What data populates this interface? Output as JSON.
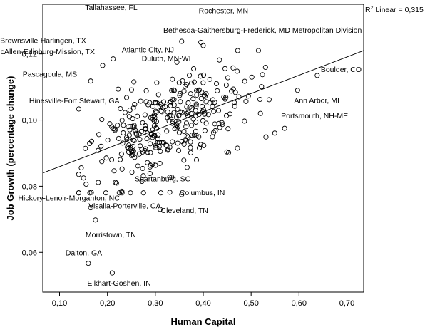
{
  "chart_data": {
    "type": "scatter",
    "xlabel": "Human Capital",
    "ylabel": "Job Growth (percentage change)",
    "xlim": [
      0.065,
      0.735
    ],
    "ylim": [
      0.048,
      0.135
    ],
    "x_ticks": [
      "0,10",
      "0,20",
      "0,30",
      "0,40",
      "0,50",
      "0,60",
      "0,70"
    ],
    "x_tick_values": [
      0.1,
      0.2,
      0.3,
      0.4,
      0.5,
      0.6,
      0.7
    ],
    "y_ticks": [
      "0,06",
      "0,08",
      "0,10",
      "0,12"
    ],
    "y_tick_values": [
      0.06,
      0.08,
      0.1,
      0.12
    ],
    "fit_line": {
      "type": "linear",
      "label_sup": "2",
      "label_prefix": "R",
      "label_suffix": " Linear = 0,315",
      "x0": 0.065,
      "y0": 0.084,
      "x1": 0.735,
      "y1": 0.121
    },
    "labeled_points": [
      {
        "label": "Tallahassee, FL",
        "x": 0.355,
        "y": 0.1238
      },
      {
        "label": "Rochester, MN",
        "x": 0.395,
        "y": 0.1235
      },
      {
        "label": "Bethesda-Gaithersburg-Frederick, MD Metropolitan Division",
        "x": 0.4,
        "y": 0.1225
      },
      {
        "label": "Brownsville-Harlingen, TX",
        "x": 0.212,
        "y": 0.1185
      },
      {
        "label": "McAllen-Edinburg-Mission, TX",
        "x": 0.19,
        "y": 0.1165
      },
      {
        "label": "Atlantic City, NJ",
        "x": 0.345,
        "y": 0.1175
      },
      {
        "label": "Duluth, MN-WI",
        "x": 0.38,
        "y": 0.1155
      },
      {
        "label": "Pascagoula, MS",
        "x": 0.165,
        "y": 0.1118
      },
      {
        "label": "Hinesville-Fort Stewart, GA",
        "x": 0.24,
        "y": 0.1068
      },
      {
        "label": "Boulder, CO",
        "x": 0.638,
        "y": 0.1135
      },
      {
        "label": "Ann Arbor, MI",
        "x": 0.597,
        "y": 0.109
      },
      {
        "label": "Portsmouth, NH-ME",
        "x": 0.57,
        "y": 0.0975
      },
      {
        "label": "Spartanburg, SC",
        "x": 0.272,
        "y": 0.0815
      },
      {
        "label": "Hickory-Lenoir-Morganton, NC",
        "x": 0.23,
        "y": 0.0785
      },
      {
        "label": "Columbus, IN",
        "x": 0.355,
        "y": 0.0775
      },
      {
        "label": "Visalia-Porterville, CA",
        "x": 0.165,
        "y": 0.0735
      },
      {
        "label": "Cleveland, TN",
        "x": 0.31,
        "y": 0.073
      },
      {
        "label": "Morristown, TN",
        "x": 0.175,
        "y": 0.0698
      },
      {
        "label": "Dalton, GA",
        "x": 0.16,
        "y": 0.0567
      },
      {
        "label": "Elkhart-Goshen, IN",
        "x": 0.21,
        "y": 0.0538
      }
    ],
    "cluster": {
      "count": 330,
      "seed": 7,
      "x_mean": 0.33,
      "x_sd": 0.085,
      "x_min": 0.14,
      "x_max": 0.58,
      "slope": 0.055,
      "intercept": 0.0805,
      "y_sd": 0.0072
    }
  }
}
